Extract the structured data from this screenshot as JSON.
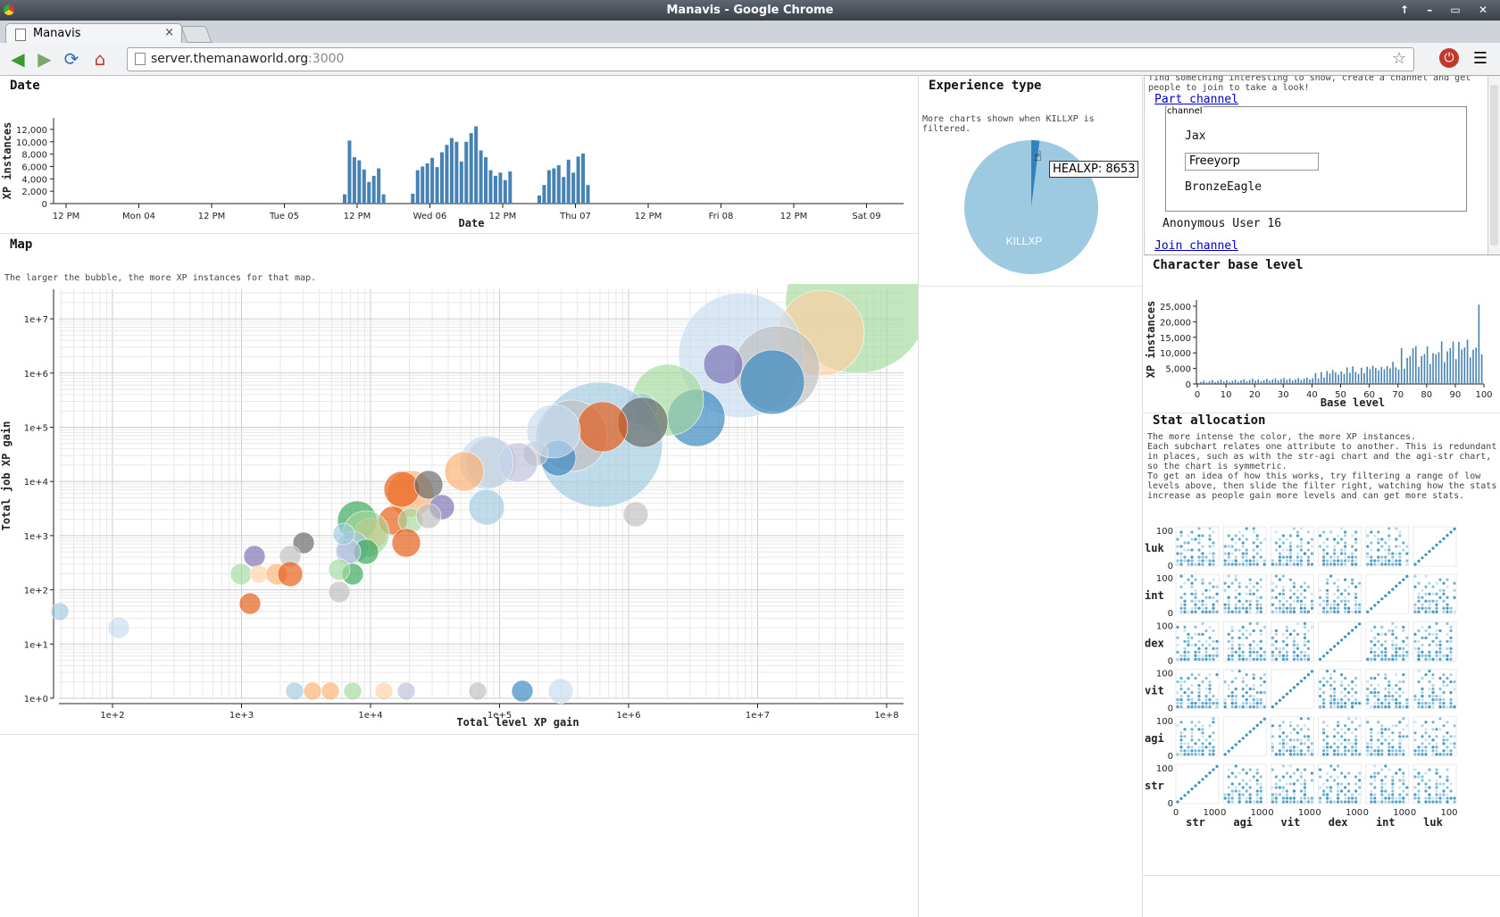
{
  "window": {
    "title": "Manavis - Google Chrome",
    "controls": "↑ – ▭ ✕"
  },
  "tab": {
    "label": "Manavis",
    "close": "×"
  },
  "address": {
    "host": "server.themanaworld.org",
    "port": ":3000"
  },
  "date_panel": {
    "title": "Date",
    "ylabel": "XP instances",
    "xlabel": "Date",
    "yticks": [
      "12,000",
      "10,000",
      "8,000",
      "6,000",
      "4,000",
      "2,000",
      "0"
    ],
    "xticks": [
      "12 PM",
      "Mon 04",
      "12 PM",
      "Tue 05",
      "12 PM",
      "Wed 06",
      "12 PM",
      "Thu 07",
      "12 PM",
      "Fri 08",
      "12 PM",
      "Sat 09"
    ],
    "bars": [
      {
        "t": 0,
        "v": 1500
      },
      {
        "t": 1,
        "v": 10200
      },
      {
        "t": 2,
        "v": 7500
      },
      {
        "t": 3,
        "v": 7000
      },
      {
        "t": 4,
        "v": 5500
      },
      {
        "t": 5,
        "v": 3500
      },
      {
        "t": 6,
        "v": 4500
      },
      {
        "t": 7,
        "v": 5700
      },
      {
        "t": 8,
        "v": 1500
      },
      {
        "t": 14,
        "v": 1600
      },
      {
        "t": 15,
        "v": 5400
      },
      {
        "t": 16,
        "v": 6000
      },
      {
        "t": 17,
        "v": 6500
      },
      {
        "t": 18,
        "v": 7400
      },
      {
        "t": 19,
        "v": 5900
      },
      {
        "t": 20,
        "v": 8300
      },
      {
        "t": 21,
        "v": 9500
      },
      {
        "t": 22,
        "v": 10600
      },
      {
        "t": 23,
        "v": 10000
      },
      {
        "t": 24,
        "v": 6800
      },
      {
        "t": 25,
        "v": 10000
      },
      {
        "t": 26,
        "v": 11400
      },
      {
        "t": 27,
        "v": 12500
      },
      {
        "t": 28,
        "v": 8600
      },
      {
        "t": 29,
        "v": 7500
      },
      {
        "t": 30,
        "v": 5400
      },
      {
        "t": 31,
        "v": 4500
      },
      {
        "t": 32,
        "v": 5000
      },
      {
        "t": 33,
        "v": 3800
      },
      {
        "t": 34,
        "v": 5200
      },
      {
        "t": 40,
        "v": 1300
      },
      {
        "t": 41,
        "v": 3000
      },
      {
        "t": 42,
        "v": 5400
      },
      {
        "t": 43,
        "v": 5700
      },
      {
        "t": 44,
        "v": 6200
      },
      {
        "t": 45,
        "v": 4300
      },
      {
        "t": 46,
        "v": 7100
      },
      {
        "t": 47,
        "v": 5000
      },
      {
        "t": 48,
        "v": 7600
      },
      {
        "t": 49,
        "v": 8100
      },
      {
        "t": 50,
        "v": 3000
      }
    ]
  },
  "map_panel": {
    "title": "Map",
    "description": "The larger the bubble, the more XP instances for that map.",
    "xlabel": "Total level XP gain",
    "ylabel": "Total job XP gain",
    "xticks": [
      "1e+2",
      "1e+3",
      "1e+4",
      "1e+5",
      "1e+6",
      "1e+7",
      "1e+8"
    ],
    "yticks": [
      "1e+7",
      "1e+6",
      "1e+5",
      "1e+4",
      "1e+3",
      "1e+2",
      "1e+1",
      "1e+0"
    ]
  },
  "exp_panel": {
    "title": "Experience type",
    "description": "More charts shown when KILLXP is filtered.",
    "slices": [
      {
        "label": "KILLXP",
        "share": 0.98
      },
      {
        "label": "HEALXP",
        "share": 0.02
      }
    ],
    "slice_label": "KILLXP",
    "tooltip": "HEALXP: 8653"
  },
  "channel_panel": {
    "intro_text": "find something interesting to show, create a channel and get people to join to take a look!",
    "part_link": "Part channel",
    "legend": "channel",
    "members": [
      "Jax",
      "BronzeEagle"
    ],
    "nick_value": "Freeyorp",
    "anonymous": "Anonymous User 16",
    "join_link": "Join channel"
  },
  "base_panel": {
    "title": "Character base level",
    "ylabel": "XP instances",
    "xlabel": "Base level",
    "yticks": [
      "25,000",
      "20,000",
      "15,000",
      "10,000",
      "5,000",
      "0"
    ],
    "xticks": [
      "0",
      "10",
      "20",
      "30",
      "40",
      "50",
      "60",
      "70",
      "80",
      "90",
      "100"
    ]
  },
  "stat_panel": {
    "title": "Stat allocation",
    "description": [
      "The more intense the color, the more XP instances.",
      "Each subchart relates one attribute to another. This is redundant",
      "in places, such as with the str-agi chart and the agi-str chart,",
      "so the chart is symmetric.",
      "To get an idea of how this works, try filtering a range of low",
      "levels above, then slide the filter right, watching how the stats",
      "increase as people gain more levels and can get more stats."
    ],
    "rows": [
      "luk",
      "int",
      "dex",
      "vit",
      "agi",
      "str"
    ],
    "cols": [
      "str",
      "agi",
      "vit",
      "dex",
      "int",
      "luk"
    ],
    "tick_hi": "100",
    "tick_lo": "0"
  },
  "colors": {
    "bar": "#4682b4",
    "pie_main": "#9ecae1",
    "pie_small": "#3182bd",
    "matrix": "#3a93c3"
  }
}
